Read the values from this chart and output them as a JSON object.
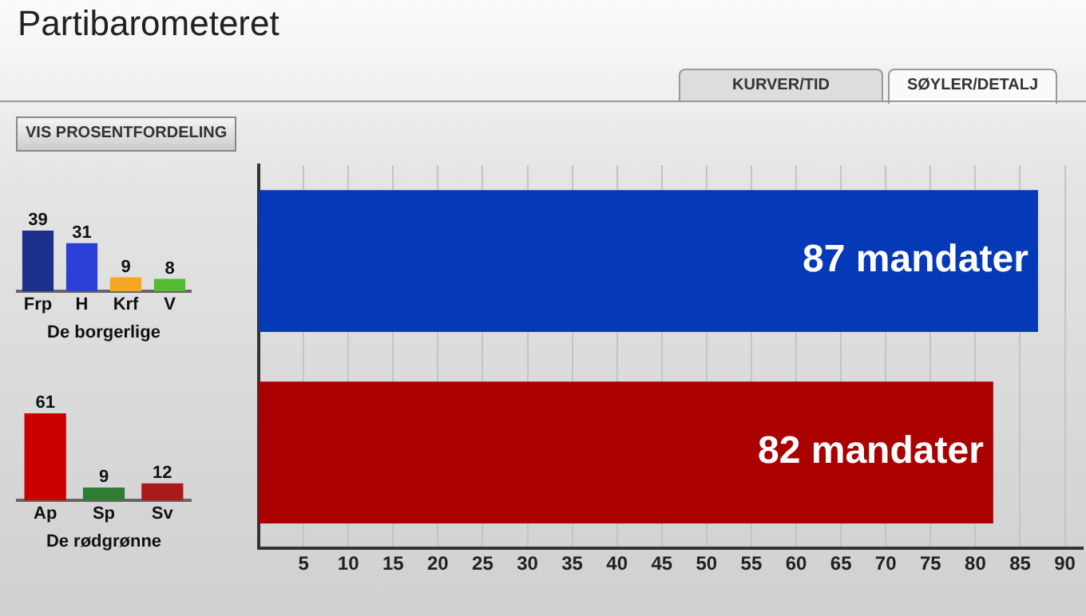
{
  "chart_data": [
    {
      "type": "bar",
      "title": "Partibarometeret",
      "orientation": "horizontal",
      "categories": [
        null,
        null
      ],
      "values": [
        87,
        82
      ],
      "colors": [
        "#0539b8",
        "#aa0000"
      ],
      "value_labels": [
        "87 mandater",
        "82 mandater"
      ],
      "xlim": [
        0,
        92
      ],
      "xticks": [
        5,
        10,
        15,
        20,
        25,
        30,
        35,
        40,
        45,
        50,
        55,
        60,
        65,
        70,
        75,
        80,
        85,
        90
      ],
      "grid": "x",
      "annotations": [
        "KURVER/TID",
        "SØYLER/DETALJ",
        "VIS PROSENTFORDELING"
      ]
    },
    {
      "type": "bar",
      "categories": [
        "Frp",
        "H",
        "Krf",
        "V"
      ],
      "values": [
        39,
        31,
        9,
        8
      ],
      "colors": [
        "#1b2f8c",
        "#2a40d6",
        "#f5a623",
        "#55bb33"
      ],
      "data_labels": true,
      "xlabel": "De borgerlige"
    },
    {
      "type": "bar",
      "categories": [
        "Ap",
        "Sp",
        "Sv"
      ],
      "values": [
        61,
        9,
        12
      ],
      "colors": [
        "#cc0000",
        "#2e7d32",
        "#aa1a1a"
      ],
      "data_labels": true,
      "xlabel": "De rødgrønne"
    }
  ]
}
